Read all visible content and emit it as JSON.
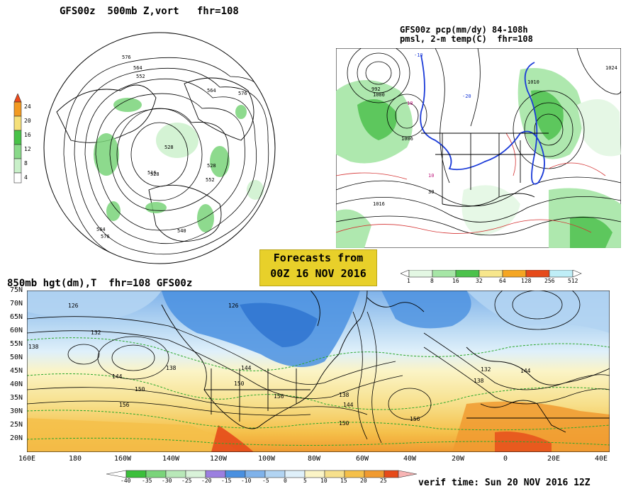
{
  "panels": {
    "top_left": {
      "title": "GFS00z  500mb Z,vort   fhr=108",
      "colorbar": {
        "labels": [
          "24",
          "20",
          "16",
          "12",
          "8",
          "4"
        ],
        "colors": [
          "#ee4a1a",
          "#f29a22",
          "#f5e07a",
          "#48c248",
          "#8ad98a",
          "#c9f0c9"
        ]
      },
      "contour_labels": [
        "576",
        "564",
        "552",
        "528",
        "516",
        "564",
        "576",
        "528",
        "552",
        "564",
        "576",
        "540",
        "528"
      ]
    },
    "top_right": {
      "title_line1": "GFS00z pcp(mm/dy) 84-108h",
      "title_line2": "pmsl, 2-m temp(C)  fhr=108",
      "contour_labels": [
        "992",
        "1000",
        "1006",
        "1016",
        "1024",
        "1010",
        "-10",
        "-20",
        "10",
        "10",
        "30"
      ],
      "colorbar": {
        "labels": [
          "1",
          "8",
          "16",
          "32",
          "64",
          "128",
          "256",
          "512"
        ],
        "colors": [
          "#e3f7e3",
          "#a6e6a6",
          "#4cc24c",
          "#f7e68c",
          "#f5a623",
          "#e64a1a",
          "#bfeef7"
        ]
      }
    },
    "banner": {
      "line1": "Forecasts from",
      "line2": "00Z 16 NOV 2016"
    },
    "bottom": {
      "title": "850mb hgt(dm),T  fhr=108 GFS00z",
      "lat_labels": [
        "75N",
        "70N",
        "65N",
        "60N",
        "55N",
        "50N",
        "45N",
        "40N",
        "35N",
        "30N",
        "25N",
        "20N"
      ],
      "lon_labels": [
        "160E",
        "180",
        "160W",
        "140W",
        "120W",
        "100W",
        "80W",
        "60W",
        "40W",
        "20W",
        "0",
        "20E",
        "40E"
      ],
      "contour_labels": [
        "126",
        "132",
        "138",
        "144",
        "150",
        "156",
        "138",
        "144",
        "150",
        "156",
        "126",
        "138",
        "144",
        "150",
        "156",
        "132",
        "138",
        "144"
      ],
      "colorbar": {
        "labels": [
          "-40",
          "-35",
          "-30",
          "-25",
          "-20",
          "-15",
          "-10",
          "-5",
          "0",
          "5",
          "10",
          "15",
          "20",
          "25"
        ],
        "colors": [
          "#3bbf3b",
          "#7ad47a",
          "#b8e8b8",
          "#d9f2d9",
          "#9b7fe0",
          "#4a90e0",
          "#7fb2ea",
          "#b2d4f2",
          "#dff0fa",
          "#fbf4c6",
          "#f7e08c",
          "#f5c04a",
          "#f09a30",
          "#e64a1a"
        ]
      },
      "verif_time": "verif time: Sun 20 NOV 2016 12Z"
    }
  }
}
